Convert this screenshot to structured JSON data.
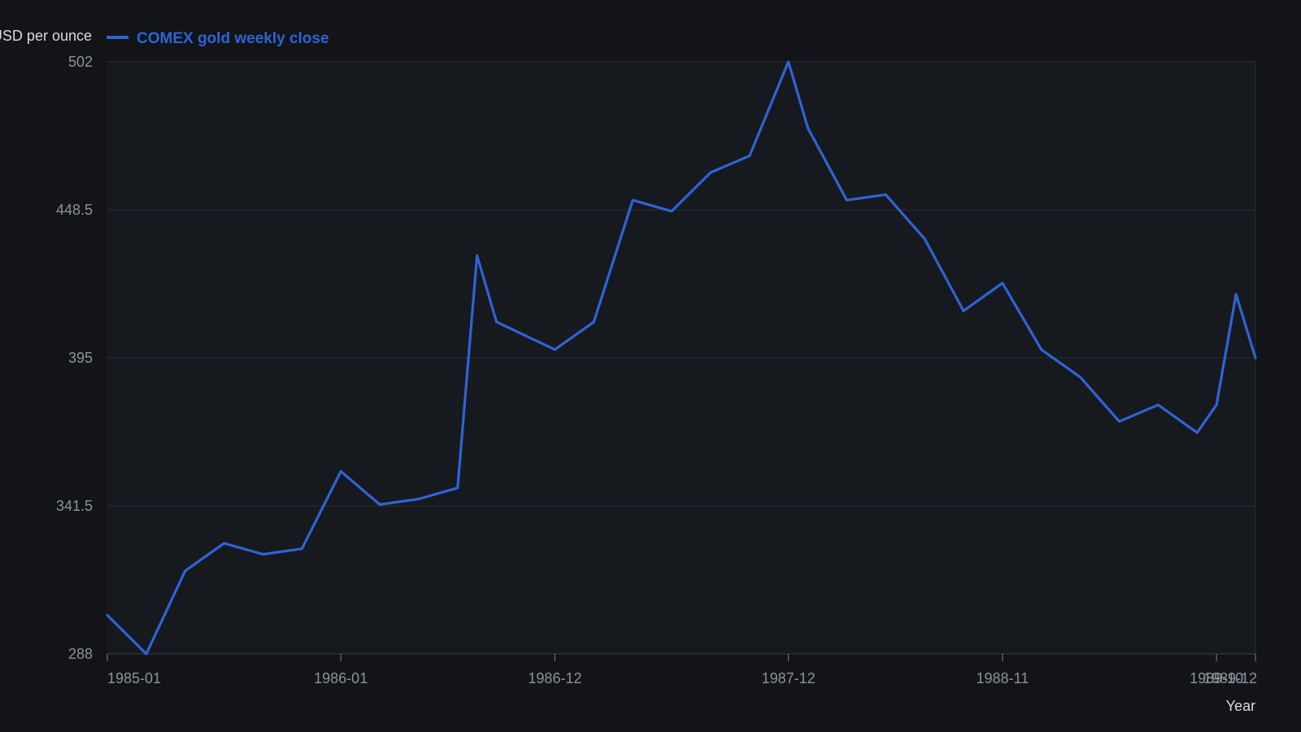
{
  "chart_data": {
    "type": "line",
    "ylabel": "USD per ounce",
    "xlabel": "Year",
    "ylim": [
      288,
      502
    ],
    "y_ticks": [
      "288",
      "341.5",
      "395",
      "448.5",
      "502"
    ],
    "x_ticks": [
      "1985-01",
      "1986-01",
      "1986-12",
      "1987-12",
      "1988-11",
      "1989-10",
      "1989-12"
    ],
    "grid": true,
    "legend_position": "top-left",
    "series": [
      {
        "name": "COMEX gold weekly close",
        "color": "#2f63d6",
        "x": [
          "1985-01",
          "1985-03",
          "1985-05",
          "1985-07",
          "1985-09",
          "1985-11",
          "1986-01",
          "1986-03",
          "1986-05",
          "1986-07",
          "1986-08",
          "1986-09",
          "1986-12",
          "1987-02",
          "1987-04",
          "1987-06",
          "1987-08",
          "1987-10",
          "1987-12",
          "1988-01",
          "1988-03",
          "1988-05",
          "1988-07",
          "1988-09",
          "1988-11",
          "1989-01",
          "1989-03",
          "1989-05",
          "1989-07",
          "1989-09",
          "1989-10",
          "1989-11",
          "1989-12"
        ],
        "values": [
          302,
          288,
          318,
          328,
          324,
          326,
          354,
          342,
          344,
          348,
          432,
          408,
          398,
          408,
          452,
          448,
          462,
          468,
          502,
          478,
          452,
          454,
          438,
          412,
          422,
          398,
          388,
          372,
          378,
          368,
          378,
          418,
          395
        ]
      }
    ]
  }
}
